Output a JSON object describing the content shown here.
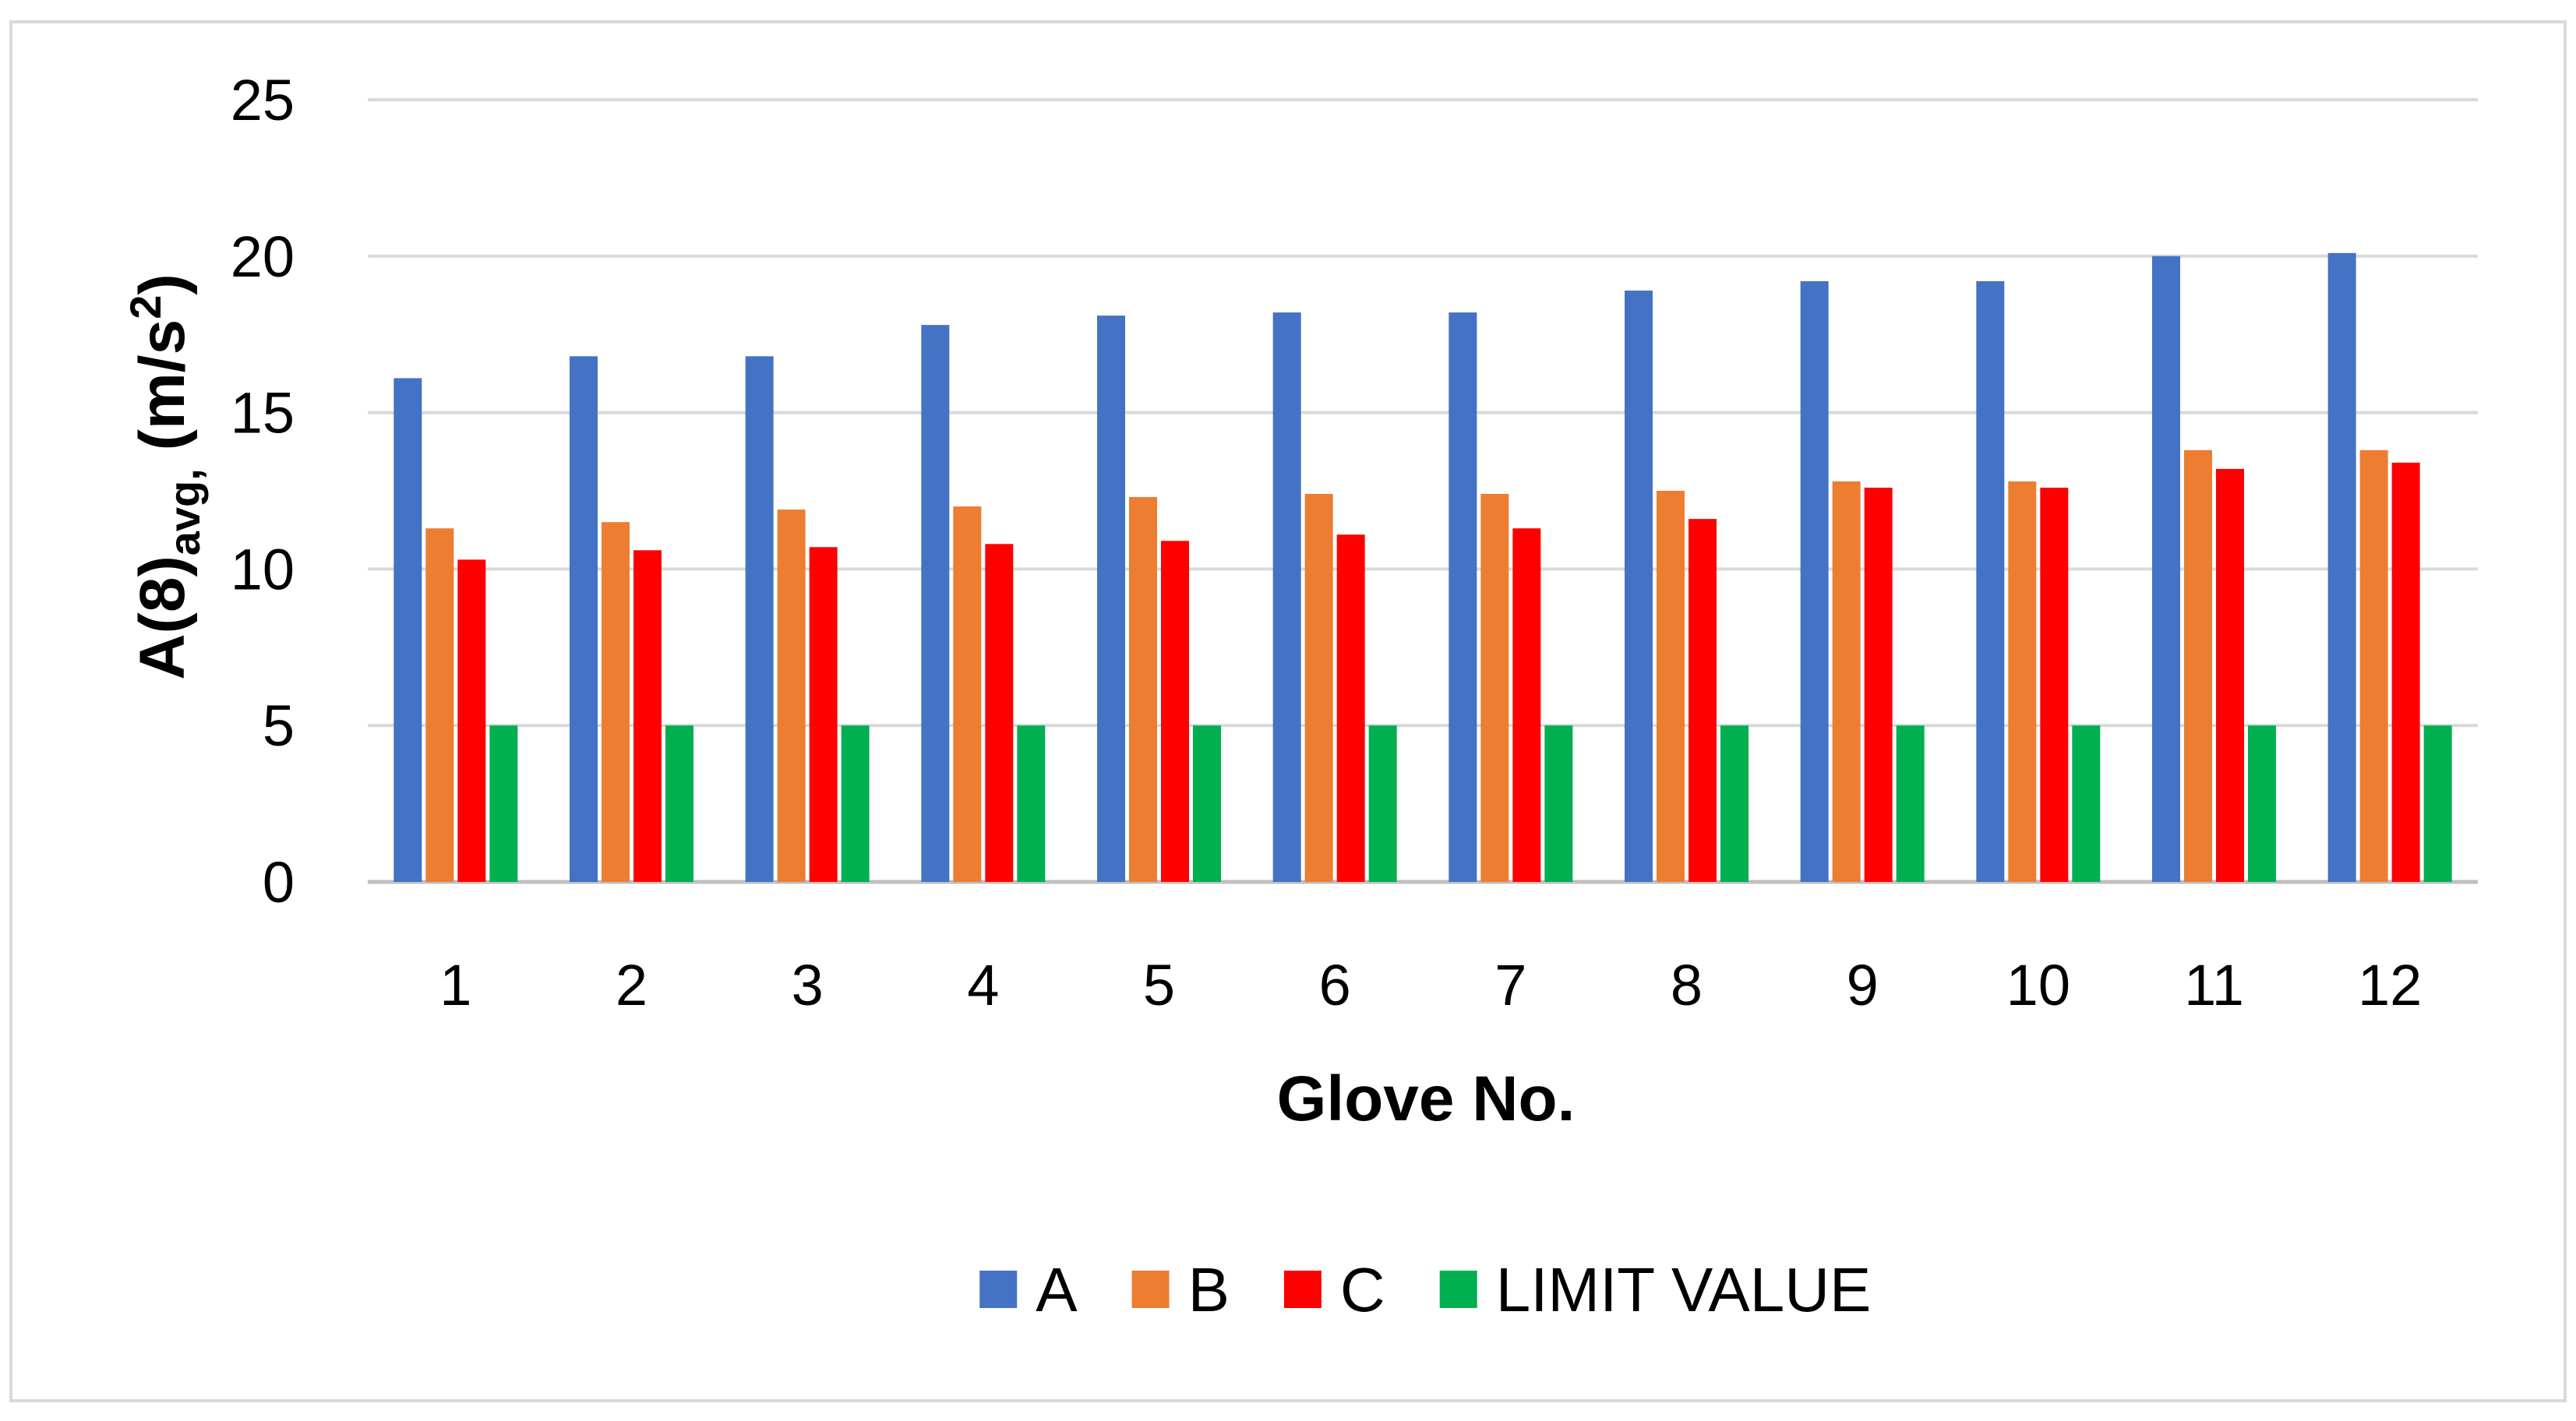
{
  "chart_data": {
    "type": "bar",
    "title": "",
    "xlabel": "Glove No.",
    "ylabel": {
      "main": "A(8)",
      "subscript": "avg,",
      "unit_open": " (m/s",
      "unit_sup": "2",
      "unit_close": ")"
    },
    "ylim": [
      0,
      25
    ],
    "yticks": [
      0,
      5,
      10,
      15,
      20,
      25
    ],
    "grid": true,
    "legend_position": "bottom",
    "categories": [
      "1",
      "2",
      "3",
      "4",
      "5",
      "6",
      "7",
      "8",
      "9",
      "10",
      "11",
      "12"
    ],
    "series": [
      {
        "name": "A",
        "color": "#4472C4",
        "values": [
          16.1,
          16.8,
          16.8,
          17.8,
          18.1,
          18.2,
          18.2,
          18.9,
          19.2,
          19.2,
          20.0,
          20.1
        ]
      },
      {
        "name": "B",
        "color": "#ED7D31",
        "values": [
          11.3,
          11.5,
          11.9,
          12.0,
          12.3,
          12.4,
          12.4,
          12.5,
          12.8,
          12.8,
          13.8,
          13.8
        ]
      },
      {
        "name": "C",
        "color": "#FF0000",
        "values": [
          10.3,
          10.6,
          10.7,
          10.8,
          10.9,
          11.1,
          11.3,
          11.6,
          12.6,
          12.6,
          13.2,
          13.4
        ]
      },
      {
        "name": "LIMIT VALUE",
        "color": "#00B050",
        "values": [
          5,
          5,
          5,
          5,
          5,
          5,
          5,
          5,
          5,
          5,
          5,
          5
        ]
      }
    ]
  }
}
